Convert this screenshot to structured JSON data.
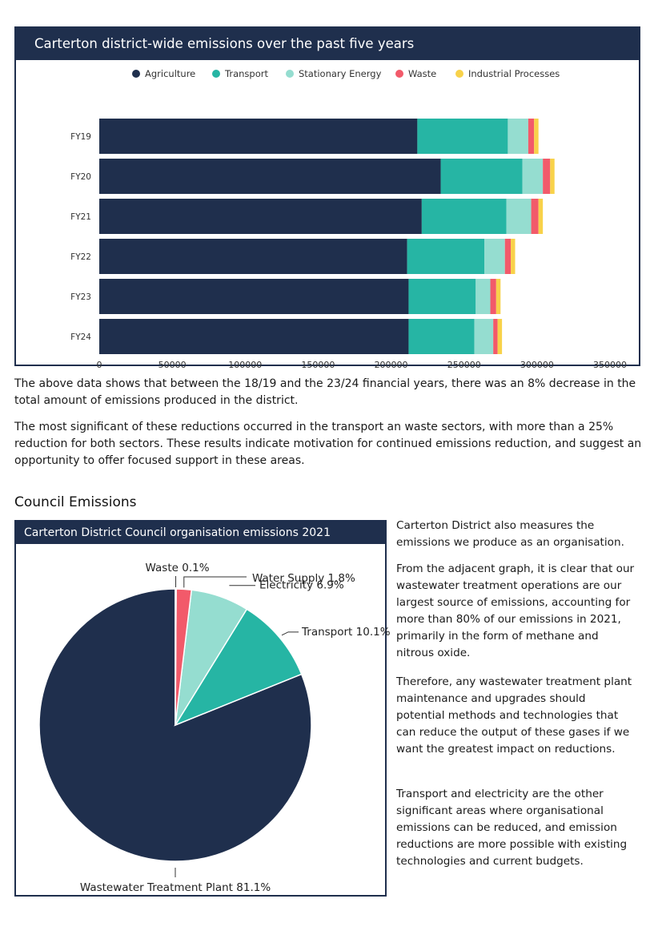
{
  "chart_data": [
    {
      "type": "bar",
      "orientation": "horizontal",
      "stacked": true,
      "title": "Carterton district-wide emissions over the past five years",
      "categories": [
        "FY19",
        "FY20",
        "FY21",
        "FY22",
        "FY23",
        "FY24"
      ],
      "series": [
        {
          "name": "Agriculture",
          "color": "#1f2f4d",
          "values": [
            218000,
            234000,
            221000,
            211000,
            212000,
            212000
          ]
        },
        {
          "name": "Transport",
          "color": "#26b5a4",
          "values": [
            62000,
            56000,
            58000,
            53000,
            46000,
            45000
          ]
        },
        {
          "name": "Stationary Energy",
          "color": "#95ddd0",
          "values": [
            14000,
            14000,
            17000,
            14000,
            10000,
            13000
          ]
        },
        {
          "name": "Waste",
          "color": "#f25a6a",
          "values": [
            4000,
            5000,
            5000,
            4000,
            4000,
            3000
          ]
        },
        {
          "name": "Industrial Processes",
          "color": "#f8d24a",
          "values": [
            3000,
            3000,
            3000,
            3000,
            3000,
            3000
          ]
        }
      ],
      "xlim": [
        0,
        350000
      ],
      "xticks": [
        0,
        50000,
        100000,
        150000,
        200000,
        250000,
        300000,
        350000
      ],
      "legend": "top",
      "grid": false
    },
    {
      "type": "pie",
      "title": "Carterton District Council organisation emissions 2021",
      "slices": [
        {
          "label": "Wastewater Treatment Plant 81.1%",
          "value": 81.1,
          "color": "#1f2f4d"
        },
        {
          "label": "Transport 10.1%",
          "value": 10.1,
          "color": "#26b5a4"
        },
        {
          "label": "Electricity 6.9%",
          "value": 6.9,
          "color": "#95ddd0"
        },
        {
          "label": "Water Supply 1.8%",
          "value": 1.8,
          "color": "#f25a6a"
        },
        {
          "label": "Waste 0.1%",
          "value": 0.1,
          "color": "#f8d24a"
        }
      ]
    }
  ],
  "text": {
    "para1": "The above data shows that between the 18/19 and the 23/24 financial years, there was an 8% decrease in the total amount of emissions produced in the district.",
    "para2": "The most significant of these reductions occurred in the transport an waste sectors, with more than a 25% reduction for both sectors. These results indicate motivation for continued emissions reduction, and suggest an opportunity to offer focused support in these areas.",
    "section_title": "Council Emissions",
    "side1": "Carterton District also measures the emissions we produce as an organisation.",
    "side2": "From the adjacent graph, it is clear that our wastewater treatment operations are our largest source of emissions, accounting for more than 80% of our emissions in 2021, primarily in the form of methane and nitrous oxide.",
    "side3": "Therefore, any wastewater treatment plant maintenance and upgrades should potential methods and technologies that can reduce the output of these gases if we want the greatest impact on reductions.",
    "side4": "Transport and electricity are the other significant areas where organisational emissions can be reduced, and emission reductions are more possible with existing technologies and current budgets."
  }
}
